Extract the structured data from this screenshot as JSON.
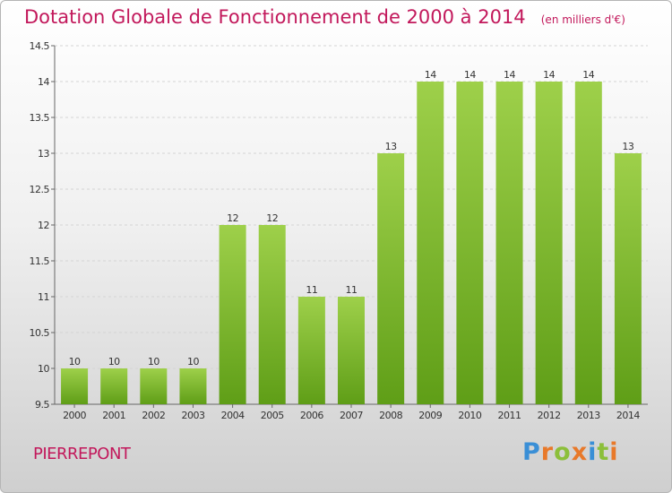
{
  "header": {
    "title": "Dotation Globale de Fonctionnement de 2000 à 2014",
    "subtitle": "(en milliers d'€)"
  },
  "footer": {
    "commune": "PIERREPONT",
    "logo_text": "Proxiti",
    "logo_colors": [
      "#3a8fd6",
      "#e8792a",
      "#8cbf3a",
      "#e8792a",
      "#3a8fd6",
      "#8cbf3a",
      "#e8792a"
    ]
  },
  "colors": {
    "title": "#c2185b",
    "bar_top": "#9ed04a",
    "bar_bottom": "#5f9e17",
    "grid": "#d4d4d4",
    "axis_text": "#333333"
  },
  "chart_data": {
    "type": "bar",
    "categories": [
      "2000",
      "2001",
      "2002",
      "2003",
      "2004",
      "2005",
      "2006",
      "2007",
      "2008",
      "2009",
      "2010",
      "2011",
      "2012",
      "2013",
      "2014"
    ],
    "values": [
      10,
      10,
      10,
      10,
      12,
      12,
      11,
      11,
      13,
      14,
      14,
      14,
      14,
      14,
      13
    ],
    "ylim": [
      9.5,
      14.5
    ],
    "yticks": [
      9.5,
      10,
      10.5,
      11,
      11.5,
      12,
      12.5,
      13,
      13.5,
      14,
      14.5
    ],
    "ytick_labels": [
      "9.5",
      "10",
      "10.5",
      "11",
      "11.5",
      "12",
      "12.5",
      "13",
      "13.5",
      "14",
      "14.5"
    ],
    "grid": "horizontal dashed",
    "data_labels": true
  }
}
